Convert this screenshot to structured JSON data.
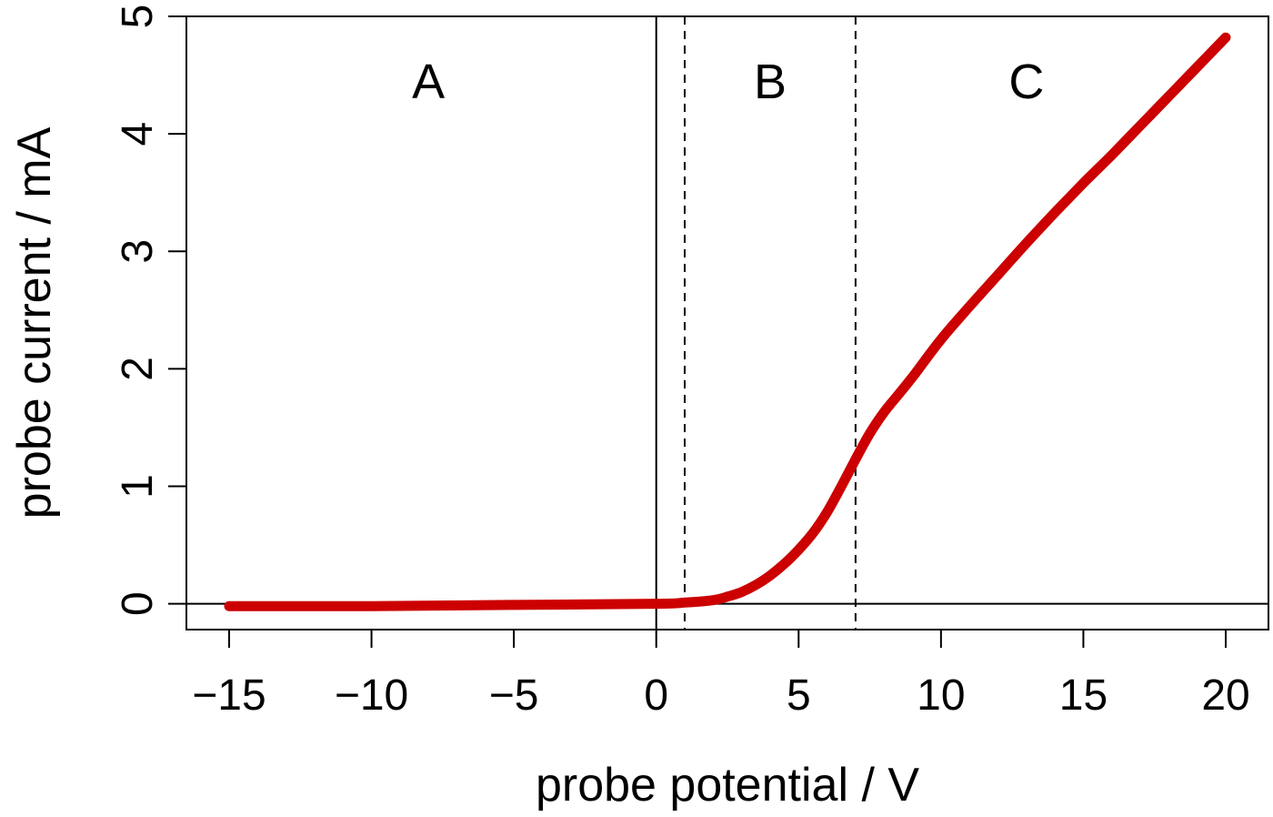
{
  "chart_data": {
    "type": "line",
    "xlabel": "probe potential / V",
    "ylabel": "probe current / mA",
    "xlim": [
      -16.5,
      21.5
    ],
    "ylim": [
      -0.22,
      5.0
    ],
    "x_ticks": [
      -15,
      -10,
      -5,
      0,
      5,
      10,
      15,
      20
    ],
    "x_tick_labels": [
      "−15",
      "−10",
      "−5",
      "0",
      "5",
      "10",
      "15",
      "20"
    ],
    "y_ticks": [
      0,
      1,
      2,
      3,
      4,
      5
    ],
    "y_tick_labels": [
      "0",
      "1",
      "2",
      "3",
      "4",
      "5"
    ],
    "grid": false,
    "reference_lines": [
      {
        "orientation": "vertical",
        "x": 0,
        "style": "solid"
      },
      {
        "orientation": "horizontal",
        "y": 0,
        "style": "solid"
      },
      {
        "orientation": "vertical",
        "x": 1,
        "style": "dashed"
      },
      {
        "orientation": "vertical",
        "x": 7,
        "style": "dashed"
      }
    ],
    "regions": [
      {
        "label": "A",
        "x": -8,
        "y": 4.45
      },
      {
        "label": "B",
        "x": 4,
        "y": 4.45
      },
      {
        "label": "C",
        "x": 13,
        "y": 4.45
      }
    ],
    "series": [
      {
        "color": "#cc0000",
        "x": [
          -15,
          -10,
          -5,
          0,
          1,
          2,
          2.5,
          3,
          3.5,
          4,
          4.5,
          5,
          5.5,
          6,
          6.5,
          7,
          7.5,
          8,
          8.5,
          9,
          10,
          11,
          12,
          13,
          14,
          15,
          16,
          17,
          18,
          19,
          20
        ],
        "y": [
          -0.02,
          -0.02,
          -0.01,
          0.0,
          0.01,
          0.03,
          0.06,
          0.1,
          0.16,
          0.24,
          0.34,
          0.46,
          0.6,
          0.78,
          1.0,
          1.23,
          1.45,
          1.63,
          1.78,
          1.93,
          2.25,
          2.53,
          2.8,
          3.07,
          3.33,
          3.58,
          3.82,
          4.07,
          4.32,
          4.57,
          4.82
        ]
      }
    ]
  }
}
